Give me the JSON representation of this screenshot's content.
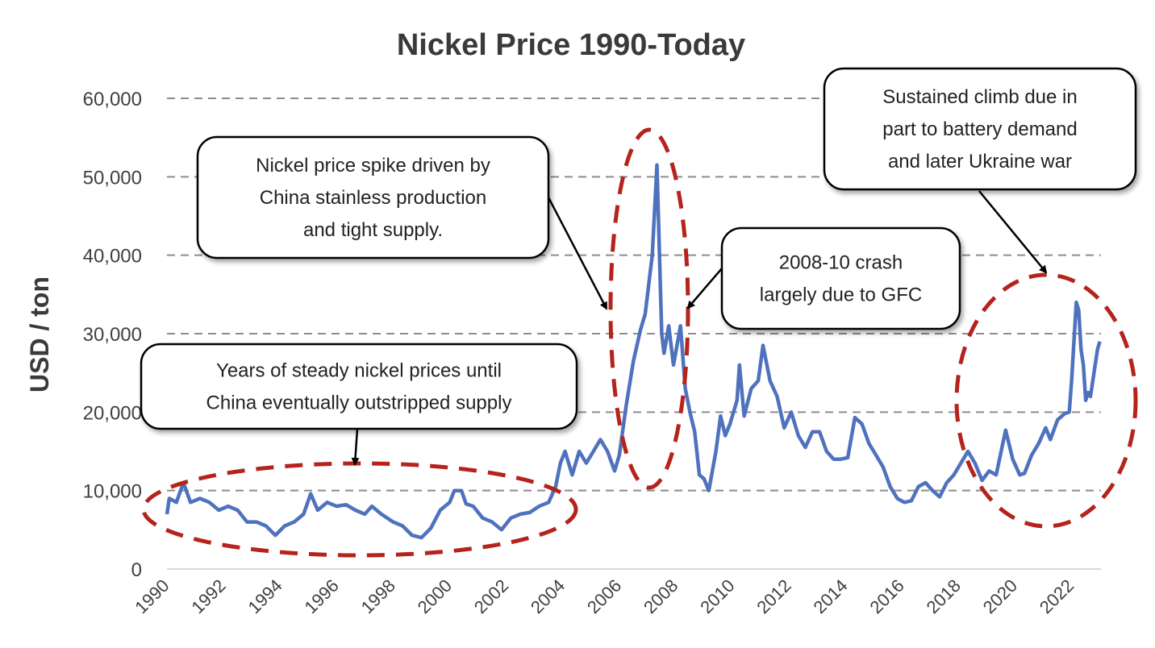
{
  "chart_data": {
    "type": "line",
    "title": "Nickel Price 1990-Today",
    "xlabel": "",
    "ylabel": "USD / ton",
    "ylim": [
      0,
      60000
    ],
    "yticks": [
      0,
      10000,
      20000,
      30000,
      40000,
      50000,
      60000
    ],
    "ytick_labels": [
      "0",
      "10,000",
      "20,000",
      "30,000",
      "40,000",
      "50,000",
      "60,000"
    ],
    "xtick_labels": [
      "1990",
      "1992",
      "1994",
      "1996",
      "1998",
      "2000",
      "2002",
      "2004",
      "2006",
      "2008",
      "2010",
      "2012",
      "2014",
      "2016",
      "2018",
      "2020",
      "2022"
    ],
    "grid": "horizontal dashed",
    "series_color": "#4f72be",
    "highlight_color": "#b5231c",
    "series": [
      {
        "x": [
          "1990-01",
          "1990-02",
          "1990-05",
          "1990-08",
          "1990-11",
          "1991-03",
          "1991-07",
          "1991-11",
          "1992-03",
          "1992-07",
          "1992-11",
          "1993-03",
          "1993-07",
          "1993-11",
          "1994-03",
          "1994-07",
          "1994-11",
          "1995-02",
          "1995-05",
          "1995-09",
          "1996-01",
          "1996-05",
          "1996-09",
          "1997-01",
          "1997-04",
          "1997-08",
          "1998-01",
          "1998-05",
          "1998-09",
          "1999-01",
          "1999-05",
          "1999-09",
          "2000-01",
          "2000-03",
          "2000-06",
          "2000-08",
          "2000-11",
          "2001-03",
          "2001-07",
          "2001-11",
          "2002-03",
          "2002-07",
          "2002-11",
          "2003-03",
          "2003-07",
          "2003-10",
          "2003-12",
          "2004-02",
          "2004-05",
          "2004-08",
          "2004-11",
          "2005-02",
          "2005-05",
          "2005-08",
          "2005-11",
          "2006-01",
          "2006-04",
          "2006-07",
          "2006-10",
          "2006-12",
          "2007-03",
          "2007-05",
          "2007-07",
          "2007-08",
          "2007-10",
          "2007-12",
          "2008-03",
          "2008-05",
          "2008-07",
          "2008-09",
          "2008-11",
          "2009-01",
          "2009-03",
          "2009-06",
          "2009-08",
          "2009-10",
          "2009-12",
          "2010-03",
          "2010-04",
          "2010-06",
          "2010-09",
          "2010-12",
          "2011-02",
          "2011-05",
          "2011-08",
          "2011-11",
          "2012-02",
          "2012-05",
          "2012-08",
          "2012-11",
          "2013-02",
          "2013-05",
          "2013-08",
          "2013-11",
          "2014-02",
          "2014-05",
          "2014-08",
          "2014-11",
          "2015-02",
          "2015-05",
          "2015-08",
          "2015-11",
          "2016-02",
          "2016-05",
          "2016-08",
          "2016-11",
          "2017-02",
          "2017-05",
          "2017-08",
          "2017-11",
          "2018-02",
          "2018-05",
          "2018-08",
          "2018-11",
          "2019-02",
          "2019-05",
          "2019-09",
          "2019-12",
          "2020-03",
          "2020-05",
          "2020-08",
          "2020-11",
          "2021-02",
          "2021-04",
          "2021-07",
          "2021-10",
          "2021-12",
          "2022-01",
          "2022-03",
          "2022-04",
          "2022-05",
          "2022-06",
          "2022-07",
          "2022-08",
          "2022-09",
          "2022-10",
          "2022-12",
          "2023-01"
        ],
        "y": [
          7000,
          9000,
          8500,
          11000,
          8500,
          9000,
          8500,
          7500,
          8000,
          7500,
          6000,
          6000,
          5500,
          4300,
          5500,
          6000,
          7000,
          9600,
          7500,
          8500,
          8000,
          8200,
          7500,
          7000,
          8000,
          7000,
          6000,
          5500,
          4300,
          4000,
          5200,
          7500,
          8500,
          10000,
          10000,
          8300,
          8000,
          6500,
          6000,
          5000,
          6500,
          7000,
          7200,
          8000,
          8500,
          10500,
          13500,
          15000,
          12000,
          15000,
          13500,
          15000,
          16500,
          15000,
          12500,
          14500,
          21000,
          26500,
          30500,
          32500,
          40000,
          51500,
          30000,
          27500,
          31000,
          26000,
          31000,
          23000,
          20000,
          17500,
          12000,
          11500,
          10000,
          15000,
          19500,
          17000,
          18500,
          21500,
          26000,
          19500,
          23000,
          24000,
          28500,
          24000,
          22000,
          18000,
          20000,
          17000,
          15500,
          17500,
          17500,
          15000,
          14000,
          14000,
          14200,
          19300,
          18500,
          16000,
          14500,
          13000,
          10500,
          9000,
          8500,
          8700,
          10500,
          11000,
          10000,
          9200,
          11000,
          12000,
          13500,
          15000,
          13500,
          11300,
          12500,
          12000,
          17700,
          14000,
          12000,
          12200,
          14500,
          16000,
          18000,
          16500,
          19000,
          19800,
          20000,
          24000,
          34000,
          33000,
          28000,
          26000,
          21500,
          22500,
          22000,
          24000,
          28000,
          29000
        ]
      }
    ],
    "annotations": [
      {
        "lines": [
          "Nickel price spike driven by",
          "China stainless production",
          "and tight supply."
        ]
      },
      {
        "lines": [
          "2008-10 crash",
          "largely due to GFC"
        ]
      },
      {
        "lines": [
          "Sustained climb due in",
          "part to battery demand",
          "and later Ukraine war"
        ]
      },
      {
        "lines": [
          "Years of steady nickel prices until",
          "China eventually outstripped supply"
        ]
      }
    ]
  }
}
